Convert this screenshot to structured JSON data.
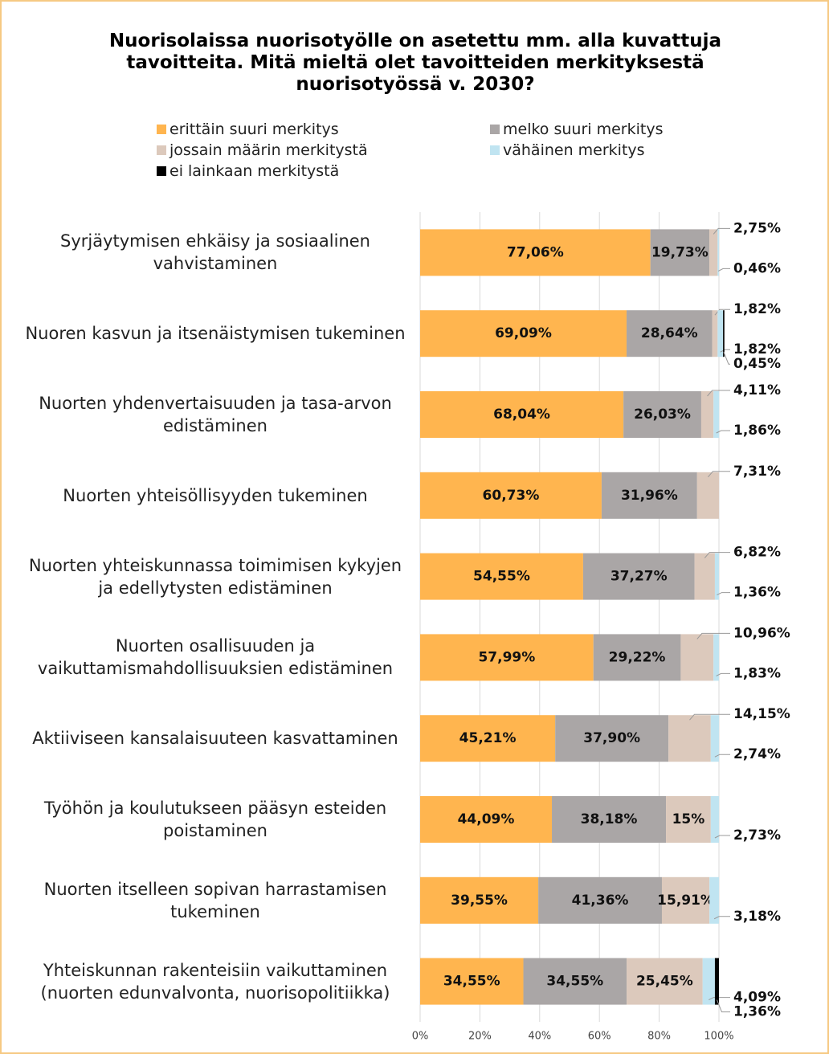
{
  "chart_data": {
    "type": "stacked-bar",
    "orientation": "horizontal",
    "title": "Nuorisolaissa nuorisotyölle on asetettu mm. alla kuvattuja tavoitteita. Mitä mieltä olet tavoitteiden merkityksestä nuorisotyössä v. 2030?",
    "categories": [
      "Syrjäytymisen ehkäisy ja sosiaalinen vahvistaminen",
      "Nuoren kasvun ja itsenäistymisen tukeminen",
      "Nuorten yhdenvertaisuuden ja tasa-arvon edistäminen",
      "Nuorten yhteisöllisyyden tukeminen",
      "Nuorten yhteiskunnassa toimimisen kykyjen ja edellytysten edistäminen",
      "Nuorten osallisuuden ja vaikuttamismahdollisuuksien edistäminen",
      "Aktiiviseen kansalaisuuteen kasvattaminen",
      "Työhön ja koulutukseen pääsyn esteiden poistaminen",
      "Nuorten itselleen sopivan harrastamisen tukeminen",
      "Yhteiskunnan rakenteisiin vaikuttaminen (nuorten edunvalvonta, nuorisopolitiikka)"
    ],
    "series": [
      {
        "name": "erittäin suuri merkitys",
        "color": "#ffb54f",
        "values": [
          77.06,
          69.09,
          68.04,
          60.73,
          54.55,
          57.99,
          45.21,
          44.09,
          39.55,
          34.55
        ],
        "value_labels": [
          "77,06%",
          "69,09%",
          "68,04%",
          "60,73%",
          "54,55%",
          "57,99%",
          "45,21%",
          "44,09%",
          "39,55%",
          "34,55%"
        ]
      },
      {
        "name": "melko suuri merkitys",
        "color": "#aaa6a6",
        "values": [
          19.73,
          28.64,
          26.03,
          31.96,
          37.27,
          29.22,
          37.9,
          38.18,
          41.36,
          34.55
        ],
        "value_labels": [
          "19,73%",
          "28,64%",
          "26,03%",
          "31,96%",
          "37,27%",
          "29,22%",
          "37,90%",
          "38,18%",
          "41,36%",
          "34,55%"
        ]
      },
      {
        "name": "jossain määrin merkitystä",
        "color": "#dcc9bc",
        "values": [
          2.75,
          1.82,
          4.11,
          7.31,
          6.82,
          10.96,
          14.15,
          15,
          15.91,
          25.45
        ],
        "value_labels": [
          "2,75%",
          "1,82%",
          "4,11%",
          "7,31%",
          "6,82%",
          "10,96%",
          "14,15%",
          "15%",
          "15,91%",
          "25,45%"
        ]
      },
      {
        "name": "vähäinen merkitys",
        "color": "#c0e4f1",
        "values": [
          0.46,
          1.82,
          1.86,
          0,
          1.36,
          1.83,
          2.74,
          2.73,
          3.18,
          4.09
        ],
        "value_labels": [
          "0,46%",
          "1,82%",
          "1,86%",
          null,
          "1,36%",
          "1,83%",
          "2,74%",
          "2,73%",
          "3,18%",
          "4,09%"
        ]
      },
      {
        "name": "ei lainkaan merkitystä",
        "color": "#000000",
        "values": [
          0,
          0.45,
          0,
          0,
          0,
          0,
          0,
          0,
          0,
          1.36
        ],
        "value_labels": [
          null,
          "0,45%",
          null,
          null,
          null,
          null,
          null,
          null,
          null,
          "1,36%"
        ]
      }
    ],
    "xlim": [
      0,
      100
    ],
    "xticks": [
      {
        "value": 0,
        "label": "0%"
      },
      {
        "value": 20,
        "label": "20%"
      },
      {
        "value": 40,
        "label": "40%"
      },
      {
        "value": 60,
        "label": "60%"
      },
      {
        "value": 80,
        "label": "80%"
      },
      {
        "value": 100,
        "label": "100%"
      }
    ],
    "grid": true,
    "legend": "top"
  }
}
